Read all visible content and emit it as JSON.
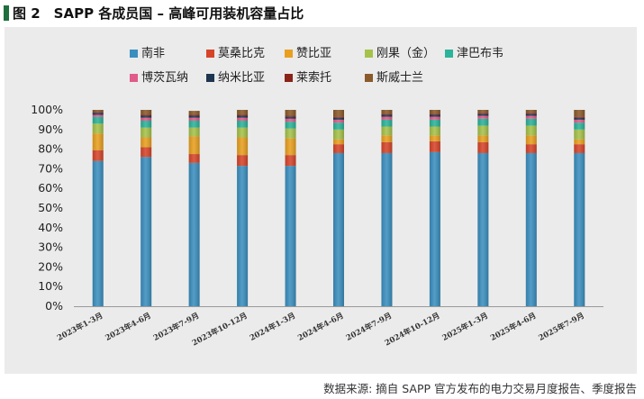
{
  "header": {
    "title": "图 2　SAPP 各成员国 – 高峰可用装机容量占比"
  },
  "source": "数据来源: 摘自 SAPP 官方发布的电力交易月度报告、季度报告",
  "chart_data": {
    "type": "stacked_bar",
    "title": "",
    "xlabel": "",
    "ylabel": "",
    "ylim": [
      0,
      100
    ],
    "y_ticks": [
      "0%",
      "10%",
      "20%",
      "30%",
      "40%",
      "50%",
      "60%",
      "70%",
      "80%",
      "90%",
      "100%"
    ],
    "legend_position": "top",
    "categories": [
      "2023年1-3月",
      "2023年4-6月",
      "2023年7-9月",
      "2023年10-12月",
      "2024年1-3月",
      "2024年4-6月",
      "2024年7-9月",
      "2024年10-12月",
      "2025年1-3月",
      "2025年4-6月",
      "2025年7-9月"
    ],
    "series": [
      {
        "name": "南非",
        "color": "#3b8fbf",
        "values": [
          74,
          76,
          73,
          71.5,
          71.5,
          78,
          78,
          78.5,
          78,
          78,
          78
        ]
      },
      {
        "name": "莫桑比克",
        "color": "#d6452a",
        "values": [
          5.5,
          5,
          4.5,
          5.5,
          5.5,
          4.5,
          5.5,
          5.5,
          5.5,
          4.5,
          4.5
        ]
      },
      {
        "name": "赞比亚",
        "color": "#e8a020",
        "values": [
          8.5,
          5,
          9,
          9,
          8.5,
          2.5,
          3.5,
          3,
          3.5,
          4.5,
          2.5
        ]
      },
      {
        "name": "刚果（金）",
        "color": "#a5c24a",
        "values": [
          5,
          5,
          4.5,
          5,
          5,
          5,
          4.5,
          4.5,
          5,
          5,
          5
        ]
      },
      {
        "name": "津巴布韦",
        "color": "#2cb39a",
        "values": [
          3.5,
          3.5,
          3.5,
          3.5,
          3.5,
          3.5,
          3.5,
          3.5,
          3.5,
          3.5,
          3.5
        ]
      },
      {
        "name": "博茨瓦纳",
        "color": "#e05a8a",
        "values": [
          1,
          1.5,
          1.5,
          1.5,
          1.5,
          1.5,
          1.5,
          1.5,
          1.5,
          1.5,
          1.5
        ]
      },
      {
        "name": "纳米比亚",
        "color": "#1f3550",
        "values": [
          1,
          1,
          1,
          1,
          1,
          1,
          1,
          1,
          1,
          1,
          1
        ]
      },
      {
        "name": "莱索托",
        "color": "#8a2318",
        "values": [
          0.5,
          0.5,
          0.5,
          0.5,
          0.5,
          0.5,
          0.5,
          0.5,
          0.5,
          0.5,
          0.5
        ]
      },
      {
        "name": "斯威士兰",
        "color": "#8a5a2a",
        "values": [
          1,
          2.5,
          2,
          2.5,
          3,
          3.5,
          2,
          2,
          1.5,
          1.5,
          3.5
        ]
      }
    ]
  }
}
